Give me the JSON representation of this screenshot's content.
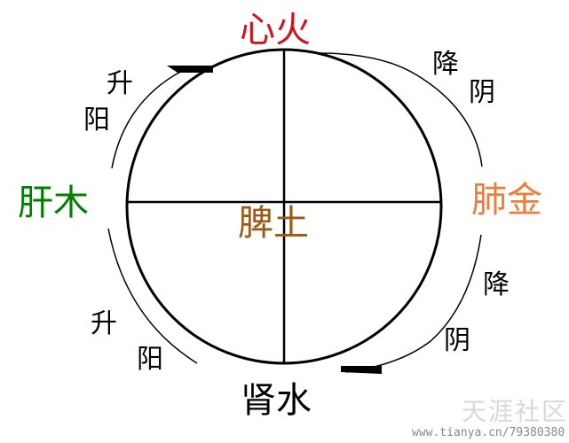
{
  "organs": {
    "top": {
      "text": "心火",
      "color": "#d0121b"
    },
    "left": {
      "text": "肝木",
      "color": "#008000"
    },
    "right": {
      "text": "肺金",
      "color": "#f07c3c"
    },
    "center": {
      "text": "脾土",
      "color": "#9c5a14"
    },
    "bottom": {
      "text": "肾水",
      "color": "#000000"
    }
  },
  "flow_labels": {
    "upper_left": [
      "升",
      "阳"
    ],
    "lower_left": [
      "升",
      "阳"
    ],
    "upper_right": [
      "降",
      "阴"
    ],
    "lower_right": [
      "降",
      "阴"
    ]
  },
  "watermark": {
    "logo": "天涯社区",
    "url": "www.tianya.cn/79380380"
  }
}
